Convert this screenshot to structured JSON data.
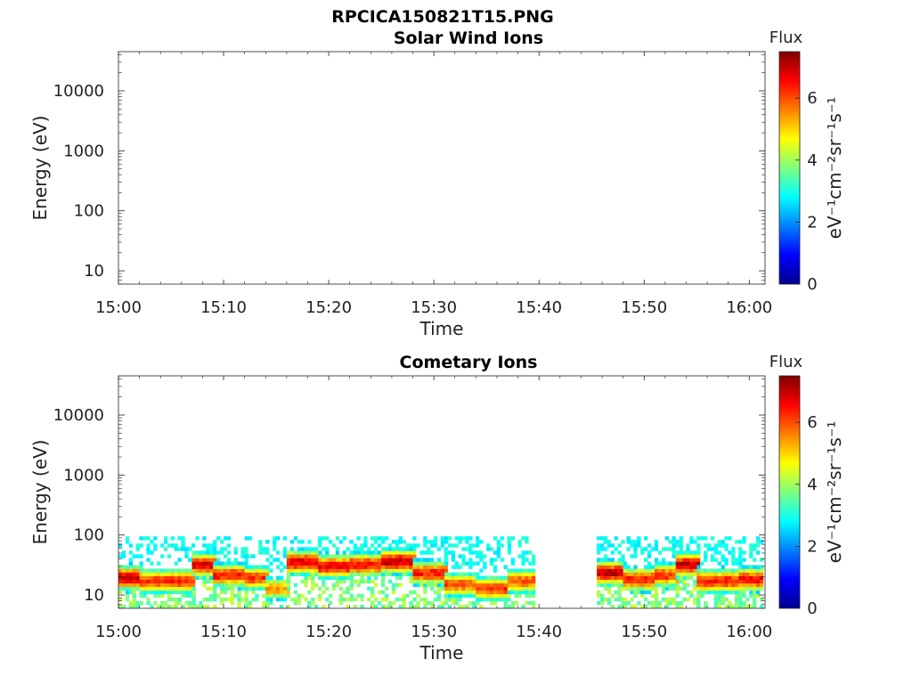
{
  "figure": {
    "title": "RPCICA150821T15.PNG"
  },
  "colorbar": {
    "label": "Flux",
    "unit": "eV⁻¹cm⁻²sr⁻¹s⁻¹",
    "ticks": [
      0,
      2,
      4,
      6
    ],
    "range": [
      0,
      7.5
    ],
    "colormap": "jet"
  },
  "chart_data": [
    {
      "type": "heatmap",
      "title": "Solar Wind Ions",
      "xlabel": "Time",
      "ylabel": "Energy (eV)",
      "xticks": [
        "15:00",
        "15:10",
        "15:20",
        "15:30",
        "15:40",
        "15:50",
        "16:00"
      ],
      "xlim_minutes": [
        0,
        61.5
      ],
      "yscale": "log",
      "ylim": [
        6,
        45000
      ],
      "yticks": [
        10,
        100,
        1000,
        10000
      ],
      "ytick_labels": [
        "10",
        "100",
        "1000",
        "10000"
      ],
      "bands": []
    },
    {
      "type": "heatmap",
      "title": "Cometary Ions",
      "xlabel": "Time",
      "ylabel": "Energy (eV)",
      "xticks": [
        "15:00",
        "15:10",
        "15:20",
        "15:30",
        "15:40",
        "15:50",
        "16:00"
      ],
      "xlim_minutes": [
        0,
        61.5
      ],
      "yscale": "log",
      "ylim": [
        6,
        45000
      ],
      "yticks": [
        10,
        100,
        1000,
        10000
      ],
      "ytick_labels": [
        "10",
        "100",
        "1000",
        "10000"
      ],
      "data_gaps_minutes": [
        [
          39.5,
          45.5
        ]
      ],
      "bands": [
        {
          "start": 0.0,
          "end": 2.0,
          "peak_energy": 18,
          "peak_flux": 7.0
        },
        {
          "start": 2.0,
          "end": 7.0,
          "peak_energy": 16,
          "peak_flux": 6.3
        },
        {
          "start": 7.0,
          "end": 9.0,
          "peak_energy": 30,
          "peak_flux": 6.8
        },
        {
          "start": 9.0,
          "end": 12.0,
          "peak_energy": 20,
          "peak_flux": 6.4
        },
        {
          "start": 12.0,
          "end": 14.0,
          "peak_energy": 18,
          "peak_flux": 6.2
        },
        {
          "start": 14.0,
          "end": 16.0,
          "peak_energy": 12,
          "peak_flux": 5.4
        },
        {
          "start": 16.0,
          "end": 19.0,
          "peak_energy": 33,
          "peak_flux": 6.8
        },
        {
          "start": 19.0,
          "end": 22.0,
          "peak_energy": 28,
          "peak_flux": 6.6
        },
        {
          "start": 22.0,
          "end": 25.0,
          "peak_energy": 30,
          "peak_flux": 6.5
        },
        {
          "start": 25.0,
          "end": 28.0,
          "peak_energy": 34,
          "peak_flux": 7.0
        },
        {
          "start": 28.0,
          "end": 31.0,
          "peak_energy": 22,
          "peak_flux": 6.4
        },
        {
          "start": 31.0,
          "end": 34.0,
          "peak_energy": 14,
          "peak_flux": 6.0
        },
        {
          "start": 34.0,
          "end": 37.0,
          "peak_energy": 12,
          "peak_flux": 6.2
        },
        {
          "start": 37.0,
          "end": 39.5,
          "peak_energy": 16,
          "peak_flux": 6.0
        },
        {
          "start": 45.5,
          "end": 48.0,
          "peak_energy": 22,
          "peak_flux": 7.0
        },
        {
          "start": 48.0,
          "end": 51.0,
          "peak_energy": 17,
          "peak_flux": 6.4
        },
        {
          "start": 51.0,
          "end": 53.0,
          "peak_energy": 20,
          "peak_flux": 6.2
        },
        {
          "start": 53.0,
          "end": 55.0,
          "peak_energy": 30,
          "peak_flux": 7.0
        },
        {
          "start": 55.0,
          "end": 59.0,
          "peak_energy": 16,
          "peak_flux": 6.4
        },
        {
          "start": 59.0,
          "end": 61.0,
          "peak_energy": 17,
          "peak_flux": 6.6
        }
      ]
    }
  ]
}
